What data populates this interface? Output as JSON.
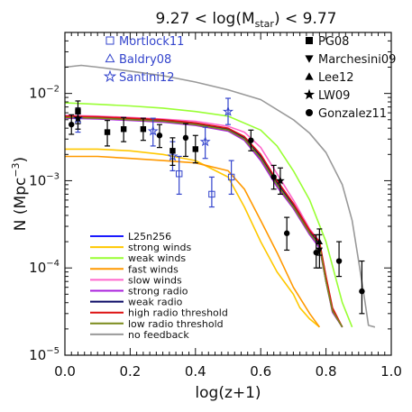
{
  "chart_data": {
    "type": "line",
    "title": {
      "prefix": "9.27 < log(M",
      "subscript": "star",
      "suffix": ") < 9.77"
    },
    "xlabel": "log(z+1)",
    "ylabel": {
      "prefix": "N (Mpc",
      "superscript": "−3",
      "suffix": ")"
    },
    "x_range": [
      0.0,
      1.0
    ],
    "y_range": [
      1e-05,
      0.05
    ],
    "y_scale": "log",
    "x_ticks": [
      "0.0",
      "0.2",
      "0.4",
      "0.6",
      "0.8",
      "1.0"
    ],
    "y_ticks": [
      {
        "value": 1e-05,
        "base": "10",
        "exp": "−5"
      },
      {
        "value": 0.0001,
        "base": "10",
        "exp": "−4"
      },
      {
        "value": 0.001,
        "base": "10",
        "exp": "−3"
      },
      {
        "value": 0.01,
        "base": "10",
        "exp": "−2"
      }
    ],
    "series": [
      {
        "name": "L25n256",
        "color": "#1a1aff",
        "x": [
          0.0,
          0.1,
          0.2,
          0.3,
          0.4,
          0.5,
          0.55,
          0.6,
          0.65,
          0.7,
          0.75,
          0.78,
          0.8,
          0.82,
          0.85
        ],
        "y": [
          0.0053,
          0.0052,
          0.005,
          0.0048,
          0.0044,
          0.0038,
          0.003,
          0.0018,
          0.0009,
          0.0005,
          0.00025,
          0.00018,
          7e-05,
          3.2e-05,
          2.1e-05
        ]
      },
      {
        "name": "strong winds",
        "color": "#ffc800",
        "x": [
          0.0,
          0.1,
          0.2,
          0.3,
          0.4,
          0.5,
          0.55,
          0.6,
          0.65,
          0.7,
          0.72,
          0.75,
          0.78
        ],
        "y": [
          0.0023,
          0.0023,
          0.0022,
          0.002,
          0.0017,
          0.0011,
          0.0005,
          0.0002,
          9e-05,
          5e-05,
          3.5e-05,
          2.6e-05,
          2.1e-05
        ]
      },
      {
        "name": "weak winds",
        "color": "#99ff33",
        "x": [
          0.0,
          0.1,
          0.2,
          0.3,
          0.4,
          0.5,
          0.6,
          0.65,
          0.7,
          0.75,
          0.8,
          0.85,
          0.88
        ],
        "y": [
          0.0078,
          0.0075,
          0.0072,
          0.0068,
          0.0062,
          0.0055,
          0.0038,
          0.0025,
          0.0013,
          0.0006,
          0.0002,
          4e-05,
          2.1e-05
        ]
      },
      {
        "name": "fast winds",
        "color": "#ff9900",
        "x": [
          0.0,
          0.1,
          0.2,
          0.3,
          0.4,
          0.5,
          0.55,
          0.6,
          0.65,
          0.7,
          0.75,
          0.78
        ],
        "y": [
          0.0019,
          0.0019,
          0.0018,
          0.0017,
          0.0016,
          0.0013,
          0.0008,
          0.00035,
          0.00015,
          6e-05,
          3e-05,
          2.1e-05
        ]
      },
      {
        "name": "slow winds",
        "color": "#ff66cc",
        "x": [
          0.0,
          0.1,
          0.2,
          0.3,
          0.4,
          0.5,
          0.55,
          0.6,
          0.65,
          0.7,
          0.75,
          0.78,
          0.8,
          0.82,
          0.85
        ],
        "y": [
          0.0056,
          0.0055,
          0.0053,
          0.0051,
          0.0048,
          0.0042,
          0.0036,
          0.0024,
          0.0012,
          0.0006,
          0.00028,
          0.0002,
          8e-05,
          3.4e-05,
          2.1e-05
        ]
      },
      {
        "name": "strong radio",
        "color": "#aa22dd",
        "x": [
          0.0,
          0.1,
          0.2,
          0.3,
          0.4,
          0.5,
          0.55,
          0.6,
          0.65,
          0.7,
          0.75,
          0.78,
          0.8,
          0.82,
          0.85
        ],
        "y": [
          0.0052,
          0.0051,
          0.0049,
          0.0047,
          0.0043,
          0.0037,
          0.0029,
          0.0017,
          0.00085,
          0.00048,
          0.00024,
          0.00017,
          7e-05,
          3.1e-05,
          2.1e-05
        ]
      },
      {
        "name": "weak radio",
        "color": "#0a0a66",
        "x": [
          0.0,
          0.1,
          0.2,
          0.3,
          0.4,
          0.5,
          0.55,
          0.6,
          0.65,
          0.7,
          0.75,
          0.78,
          0.8,
          0.82,
          0.85
        ],
        "y": [
          0.0054,
          0.0053,
          0.0051,
          0.0049,
          0.0045,
          0.0039,
          0.0031,
          0.0019,
          0.00095,
          0.00052,
          0.00026,
          0.00019,
          7.5e-05,
          3.3e-05,
          2.1e-05
        ]
      },
      {
        "name": "high radio threshold",
        "color": "#dd1111",
        "x": [
          0.0,
          0.1,
          0.2,
          0.3,
          0.4,
          0.5,
          0.55,
          0.6,
          0.65,
          0.7,
          0.75,
          0.78,
          0.8,
          0.82,
          0.85
        ],
        "y": [
          0.0055,
          0.0054,
          0.0052,
          0.005,
          0.0046,
          0.004,
          0.0032,
          0.002,
          0.001,
          0.00055,
          0.00027,
          0.0002,
          8e-05,
          3.5e-05,
          2.1e-05
        ]
      },
      {
        "name": "low radio threshold",
        "color": "#7a8a1a",
        "x": [
          0.0,
          0.1,
          0.2,
          0.3,
          0.4,
          0.5,
          0.55,
          0.6,
          0.65,
          0.7,
          0.75,
          0.78,
          0.8,
          0.82,
          0.85
        ],
        "y": [
          0.0053,
          0.0052,
          0.005,
          0.0048,
          0.0044,
          0.0038,
          0.003,
          0.0018,
          0.0009,
          0.0005,
          0.00025,
          0.00018,
          7e-05,
          3.2e-05,
          2.1e-05
        ]
      },
      {
        "name": "no feedback",
        "color": "#999999",
        "x": [
          0.0,
          0.05,
          0.1,
          0.2,
          0.3,
          0.4,
          0.5,
          0.6,
          0.7,
          0.75,
          0.8,
          0.85,
          0.88,
          0.9,
          0.92,
          0.93,
          0.95
        ],
        "y": [
          0.02,
          0.021,
          0.02,
          0.018,
          0.016,
          0.0135,
          0.011,
          0.0085,
          0.005,
          0.0035,
          0.0021,
          0.0009,
          0.00035,
          0.00012,
          4e-05,
          2.2e-05,
          2.1e-05
        ]
      }
    ],
    "observations": [
      {
        "name": "Mortlock11",
        "marker": "square-open",
        "color": "#3344cc",
        "points": [
          {
            "x": 0.35,
            "y": 0.0012,
            "lo": 0.0007,
            "hi": 0.0019
          },
          {
            "x": 0.45,
            "y": 0.0007,
            "lo": 0.0005,
            "hi": 0.0011
          },
          {
            "x": 0.51,
            "y": 0.0011,
            "lo": 0.0007,
            "hi": 0.0017
          }
        ]
      },
      {
        "name": "Baldry08",
        "marker": "triangle-open",
        "color": "#3344cc",
        "points": []
      },
      {
        "name": "Santini12",
        "marker": "star-open",
        "color": "#3344cc",
        "points": [
          {
            "x": 0.04,
            "y": 0.0051,
            "lo": 0.0036,
            "hi": 0.0068
          },
          {
            "x": 0.27,
            "y": 0.0037,
            "lo": 0.0025,
            "hi": 0.0052
          },
          {
            "x": 0.33,
            "y": 0.0019,
            "lo": 0.0013,
            "hi": 0.0028
          },
          {
            "x": 0.43,
            "y": 0.0028,
            "lo": 0.0018,
            "hi": 0.0041
          },
          {
            "x": 0.5,
            "y": 0.0062,
            "lo": 0.0044,
            "hi": 0.0088
          }
        ]
      },
      {
        "name": "PG08",
        "marker": "square-filled",
        "color": "#000000",
        "points": [
          {
            "x": 0.04,
            "y": 0.0062,
            "lo": 0.0045,
            "hi": 0.0082
          },
          {
            "x": 0.13,
            "y": 0.0036,
            "lo": 0.0025,
            "hi": 0.0049
          },
          {
            "x": 0.18,
            "y": 0.0039,
            "lo": 0.0028,
            "hi": 0.0053
          },
          {
            "x": 0.24,
            "y": 0.0039,
            "lo": 0.0029,
            "hi": 0.0052
          },
          {
            "x": 0.33,
            "y": 0.0022,
            "lo": 0.0015,
            "hi": 0.0031
          },
          {
            "x": 0.4,
            "y": 0.0023,
            "lo": 0.0016,
            "hi": 0.0033
          }
        ]
      },
      {
        "name": "Marchesini09",
        "marker": "triangle-down",
        "color": "#000000",
        "points": [
          {
            "x": 0.78,
            "y": 0.00016,
            "lo": 0.0001,
            "hi": 0.00024
          }
        ]
      },
      {
        "name": "Lee12",
        "marker": "triangle-up",
        "color": "#000000",
        "points": [
          {
            "x": 0.78,
            "y": 0.0002,
            "lo": 0.00014,
            "hi": 0.00028
          }
        ]
      },
      {
        "name": "LW09",
        "marker": "star-filled",
        "color": "#000000",
        "points": [
          {
            "x": 0.04,
            "y": 0.0052,
            "lo": 0.0039,
            "hi": 0.0068
          },
          {
            "x": 0.66,
            "y": 0.001,
            "lo": 0.0007,
            "hi": 0.0014
          }
        ]
      },
      {
        "name": "Gonzalez11",
        "marker": "circle-filled",
        "color": "#000000",
        "points": [
          {
            "x": 0.02,
            "y": 0.0044,
            "lo": 0.0034,
            "hi": 0.0057
          },
          {
            "x": 0.29,
            "y": 0.0033,
            "lo": 0.0024,
            "hi": 0.0044
          },
          {
            "x": 0.37,
            "y": 0.0031,
            "lo": 0.0019,
            "hi": 0.0045
          },
          {
            "x": 0.57,
            "y": 0.0029,
            "lo": 0.0022,
            "hi": 0.0038
          },
          {
            "x": 0.64,
            "y": 0.0011,
            "lo": 0.0008,
            "hi": 0.0015
          },
          {
            "x": 0.68,
            "y": 0.00025,
            "lo": 0.00016,
            "hi": 0.00038
          },
          {
            "x": 0.77,
            "y": 0.00015,
            "lo": 0.0001,
            "hi": 0.00024
          },
          {
            "x": 0.84,
            "y": 0.00012,
            "lo": 8e-05,
            "hi": 0.0002
          },
          {
            "x": 0.91,
            "y": 5.4e-05,
            "lo": 3e-05,
            "hi": 0.00012
          }
        ]
      }
    ],
    "legends": {
      "observations_left": [
        "Mortlock11",
        "Baldry08",
        "Santini12"
      ],
      "observations_right": [
        "PG08",
        "Marchesini09",
        "Lee12",
        "LW09",
        "Gonzalez11"
      ],
      "models": [
        "L25n256",
        "strong winds",
        "weak winds",
        "fast winds",
        "slow winds",
        "strong radio",
        "weak radio",
        "high radio threshold",
        "low radio threshold",
        "no feedback"
      ]
    },
    "grid": false
  }
}
